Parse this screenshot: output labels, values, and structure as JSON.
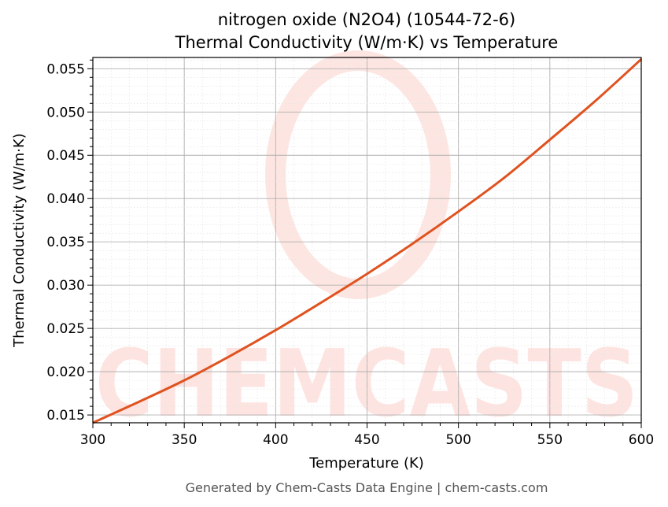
{
  "chart_data": {
    "type": "line",
    "title": "nitrogen oxide (N2O4) (10544-72-6)",
    "subtitle": "Thermal Conductivity (W/m·K) vs Temperature",
    "xlabel": "Temperature (K)",
    "ylabel": "Thermal Conductivity (W/m·K)",
    "xlim": [
      300,
      600
    ],
    "ylim": [
      0.0141,
      0.0563
    ],
    "xticks": [
      300,
      350,
      400,
      450,
      500,
      550,
      600
    ],
    "yticks": [
      0.015,
      0.02,
      0.025,
      0.03,
      0.035,
      0.04,
      0.045,
      0.05,
      0.055
    ],
    "grid": true,
    "series": [
      {
        "color": "#e0521f",
        "x": [
          300,
          325,
          350,
          375,
          400,
          425,
          450,
          475,
          500,
          525,
          550,
          575,
          600
        ],
        "y": [
          0.0141,
          0.0165,
          0.019,
          0.0218,
          0.0248,
          0.028,
          0.0313,
          0.0348,
          0.0385,
          0.0424,
          0.0468,
          0.0513,
          0.0561
        ]
      }
    ],
    "watermark": "CHEMCASTS"
  },
  "footer": "Generated by Chem-Casts Data Engine | chem-casts.com"
}
